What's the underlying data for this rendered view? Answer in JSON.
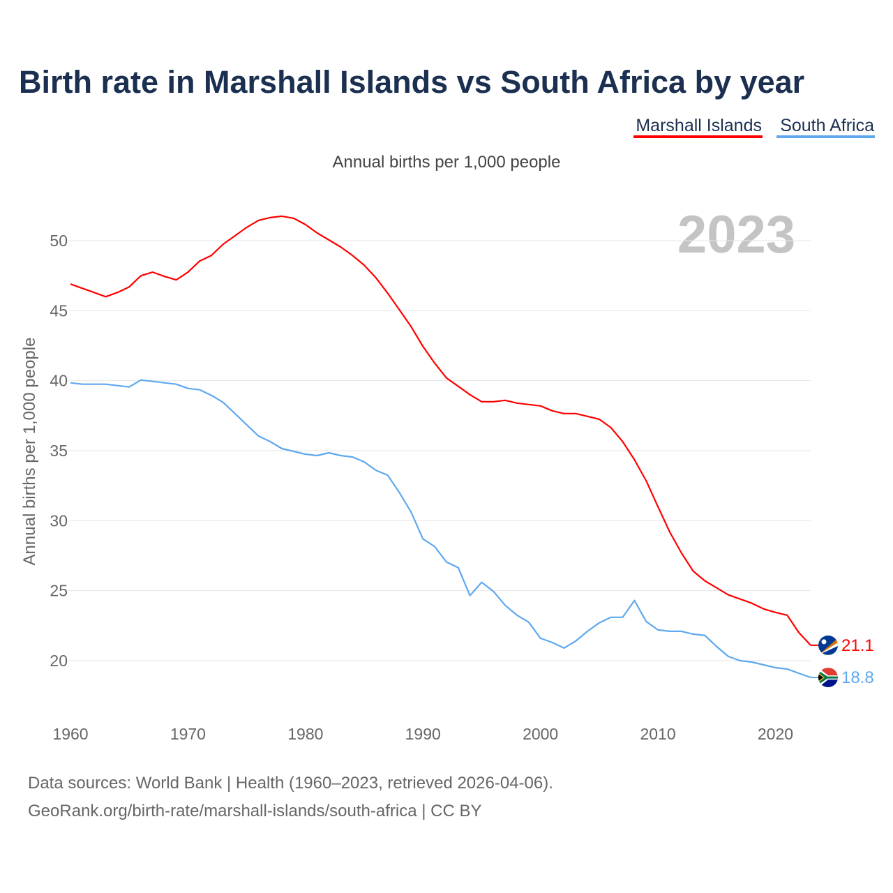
{
  "chart_data": {
    "type": "line",
    "title": "Birth rate in Marshall Islands vs South Africa by year",
    "subtitle": "Annual births per 1,000 people",
    "ylabel": "Annual births per 1,000 people",
    "xlabel": "",
    "year_display": "2023",
    "xlim": [
      1960,
      2023
    ],
    "ylim": [
      17,
      53
    ],
    "x_ticks": [
      1960,
      1970,
      1980,
      1990,
      2000,
      2010,
      2020
    ],
    "y_ticks": [
      20,
      25,
      30,
      35,
      40,
      45,
      50
    ],
    "grid": true,
    "legend_position": "top-right",
    "x": [
      1960,
      1961,
      1962,
      1963,
      1964,
      1965,
      1966,
      1967,
      1968,
      1969,
      1970,
      1971,
      1972,
      1973,
      1974,
      1975,
      1976,
      1977,
      1978,
      1979,
      1980,
      1981,
      1982,
      1983,
      1984,
      1985,
      1986,
      1987,
      1988,
      1989,
      1990,
      1991,
      1992,
      1993,
      1994,
      1995,
      1996,
      1997,
      1998,
      1999,
      2000,
      2001,
      2002,
      2003,
      2004,
      2005,
      2006,
      2007,
      2008,
      2009,
      2010,
      2011,
      2012,
      2013,
      2014,
      2015,
      2016,
      2017,
      2018,
      2019,
      2020,
      2021,
      2022,
      2023
    ],
    "series": [
      {
        "name": "Marshall Islands",
        "color": "#ff0000",
        "end_label": "21.1",
        "values": [
          46.9,
          46.6,
          46.3,
          46.0,
          46.3,
          46.7,
          47.5,
          47.75,
          47.45,
          47.2,
          47.75,
          48.55,
          48.95,
          49.75,
          50.35,
          50.95,
          51.45,
          51.65,
          51.75,
          51.6,
          51.15,
          50.55,
          50.05,
          49.55,
          48.95,
          48.25,
          47.35,
          46.25,
          45.05,
          43.85,
          42.45,
          41.25,
          40.2,
          39.6,
          39.0,
          38.5,
          38.5,
          38.6,
          38.4,
          38.3,
          38.2,
          37.85,
          37.65,
          37.65,
          37.45,
          37.25,
          36.65,
          35.65,
          34.35,
          32.85,
          31.0,
          29.2,
          27.7,
          26.4,
          25.7,
          25.2,
          24.7,
          24.4,
          24.1,
          23.7,
          23.45,
          23.25,
          22.0,
          21.1
        ]
      },
      {
        "name": "South Africa",
        "color": "#5ea8ef",
        "end_label": "18.8",
        "values": [
          39.85,
          39.75,
          39.75,
          39.75,
          39.65,
          39.55,
          40.05,
          39.95,
          39.85,
          39.75,
          39.45,
          39.35,
          38.95,
          38.45,
          37.65,
          36.85,
          36.05,
          35.65,
          35.15,
          34.95,
          34.75,
          34.65,
          34.85,
          34.65,
          34.55,
          34.2,
          33.6,
          33.25,
          32.0,
          30.6,
          28.7,
          28.15,
          27.05,
          26.65,
          24.65,
          25.6,
          24.95,
          23.95,
          23.25,
          22.75,
          21.6,
          21.3,
          20.9,
          21.4,
          22.1,
          22.7,
          23.1,
          23.1,
          24.3,
          22.8,
          22.2,
          22.1,
          22.1,
          21.9,
          21.8,
          21.0,
          20.3,
          20.0,
          19.9,
          19.7,
          19.5,
          19.4,
          19.1,
          18.8
        ]
      }
    ]
  },
  "footer": {
    "line1": "Data sources: World Bank | Health (1960–2023, retrieved 2026-04-06).",
    "line2": "GeoRank.org/birth-rate/marshall-islands/south-africa | CC BY"
  }
}
